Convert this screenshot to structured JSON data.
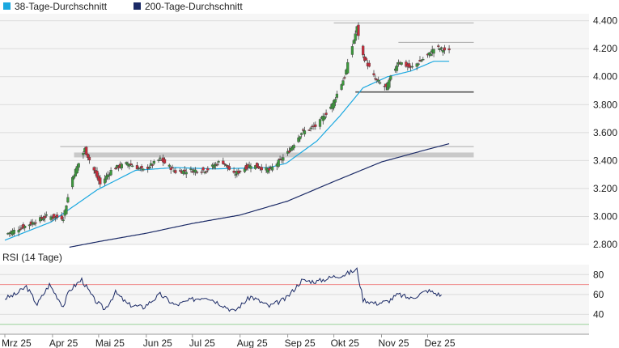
{
  "chart_data": {
    "type": "candlestick",
    "legend_placement": "top-left",
    "legend": [
      {
        "name": "38-Tage-Durchschnitt",
        "color": "#1aa8e0"
      },
      {
        "name": "200-Tage-Durchschnitt",
        "color": "#1b2a66"
      }
    ],
    "price_axis": {
      "ylim": [
        2800,
        4450
      ],
      "ticks": [
        2800,
        3000,
        3200,
        3400,
        3600,
        3800,
        4000,
        4200,
        4400
      ],
      "tick_labels": [
        "2.800",
        "3.000",
        "3.200",
        "3.400",
        "3.600",
        "3.800",
        "4.000",
        "4.200",
        "4.400"
      ]
    },
    "x_axis": {
      "tick_labels": [
        "Mrz 25",
        "Apr 25",
        "Mai 25",
        "Jun 25",
        "Jul 25",
        "Aug 25",
        "Sep 25",
        "Okt 25",
        "Nov 25",
        "Dez 25"
      ]
    },
    "support_resistance": [
      {
        "value": 4385,
        "from": "2025-10-01",
        "to": "2025-12-31",
        "band": false
      },
      {
        "value": 4245,
        "from": "2025-11-12",
        "to": "2025-12-31",
        "band": false
      },
      {
        "value": 3890,
        "from": "2025-10-15",
        "to": "2025-12-31",
        "band": false,
        "strong": true
      },
      {
        "value": 3500,
        "from": "2025-04-06",
        "to": "2025-12-31",
        "band": false
      },
      {
        "value": 3440,
        "from": "2025-04-15",
        "to": "2025-12-31",
        "band": true
      }
    ],
    "anchors": {
      "close": [
        [
          "2025-03-01",
          2870
        ],
        [
          "2025-03-15",
          2935
        ],
        [
          "2025-03-28",
          3000
        ],
        [
          "2025-04-08",
          2990
        ],
        [
          "2025-04-14",
          3280
        ],
        [
          "2025-04-22",
          3480
        ],
        [
          "2025-05-02",
          3230
        ],
        [
          "2025-05-10",
          3340
        ],
        [
          "2025-05-20",
          3380
        ],
        [
          "2025-05-30",
          3330
        ],
        [
          "2025-06-10",
          3410
        ],
        [
          "2025-06-20",
          3320
        ],
        [
          "2025-06-30",
          3330
        ],
        [
          "2025-07-10",
          3330
        ],
        [
          "2025-07-20",
          3400
        ],
        [
          "2025-07-28",
          3300
        ],
        [
          "2025-08-08",
          3370
        ],
        [
          "2025-08-20",
          3330
        ],
        [
          "2025-08-31",
          3440
        ],
        [
          "2025-09-10",
          3600
        ],
        [
          "2025-09-20",
          3650
        ],
        [
          "2025-09-30",
          3800
        ],
        [
          "2025-10-08",
          4000
        ],
        [
          "2025-10-16",
          4350
        ],
        [
          "2025-10-20",
          4150
        ],
        [
          "2025-10-28",
          3980
        ],
        [
          "2025-11-04",
          3920
        ],
        [
          "2025-11-12",
          4110
        ],
        [
          "2025-11-20",
          4060
        ],
        [
          "2025-12-01",
          4150
        ],
        [
          "2025-12-06",
          4210
        ],
        [
          "2025-12-15",
          4180
        ]
      ],
      "ma38": [
        [
          "2025-03-01",
          2830
        ],
        [
          "2025-03-31",
          2960
        ],
        [
          "2025-04-30",
          3190
        ],
        [
          "2025-05-25",
          3330
        ],
        [
          "2025-06-20",
          3350
        ],
        [
          "2025-07-15",
          3340
        ],
        [
          "2025-08-20",
          3350
        ],
        [
          "2025-08-31",
          3380
        ],
        [
          "2025-09-20",
          3540
        ],
        [
          "2025-10-05",
          3720
        ],
        [
          "2025-10-20",
          3920
        ],
        [
          "2025-11-05",
          4000
        ],
        [
          "2025-11-20",
          4040
        ],
        [
          "2025-12-05",
          4110
        ],
        [
          "2025-12-15",
          4110
        ]
      ],
      "ma200": [
        [
          "2025-04-12",
          2780
        ],
        [
          "2025-05-01",
          2820
        ],
        [
          "2025-06-01",
          2880
        ],
        [
          "2025-07-01",
          2950
        ],
        [
          "2025-08-01",
          3010
        ],
        [
          "2025-09-01",
          3110
        ],
        [
          "2025-10-01",
          3250
        ],
        [
          "2025-11-01",
          3390
        ],
        [
          "2025-12-01",
          3480
        ],
        [
          "2025-12-15",
          3520
        ]
      ]
    },
    "rsi": {
      "title": "RSI (14 Tage)",
      "ylim": [
        20,
        90
      ],
      "ticks": [
        40,
        60,
        80
      ],
      "tick_labels": [
        "40",
        "60",
        "80"
      ],
      "overbought": 70,
      "oversold": 30,
      "anchors": [
        [
          "2025-03-01",
          56
        ],
        [
          "2025-03-08",
          60
        ],
        [
          "2025-03-15",
          68
        ],
        [
          "2025-03-22",
          50
        ],
        [
          "2025-03-30",
          70
        ],
        [
          "2025-04-08",
          48
        ],
        [
          "2025-04-12",
          64
        ],
        [
          "2025-04-20",
          75
        ],
        [
          "2025-04-28",
          55
        ],
        [
          "2025-05-05",
          45
        ],
        [
          "2025-05-12",
          62
        ],
        [
          "2025-05-20",
          50
        ],
        [
          "2025-05-30",
          47
        ],
        [
          "2025-06-10",
          60
        ],
        [
          "2025-06-20",
          49
        ],
        [
          "2025-07-01",
          55
        ],
        [
          "2025-07-10",
          58
        ],
        [
          "2025-07-20",
          50
        ],
        [
          "2025-07-28",
          43
        ],
        [
          "2025-08-08",
          58
        ],
        [
          "2025-08-20",
          48
        ],
        [
          "2025-08-31",
          56
        ],
        [
          "2025-09-10",
          74
        ],
        [
          "2025-09-20",
          73
        ],
        [
          "2025-10-01",
          78
        ],
        [
          "2025-10-08",
          80
        ],
        [
          "2025-10-16",
          85
        ],
        [
          "2025-10-20",
          55
        ],
        [
          "2025-10-28",
          51
        ],
        [
          "2025-11-05",
          53
        ],
        [
          "2025-11-12",
          60
        ],
        [
          "2025-11-20",
          56
        ],
        [
          "2025-12-01",
          64
        ],
        [
          "2025-12-10",
          59
        ]
      ]
    }
  }
}
